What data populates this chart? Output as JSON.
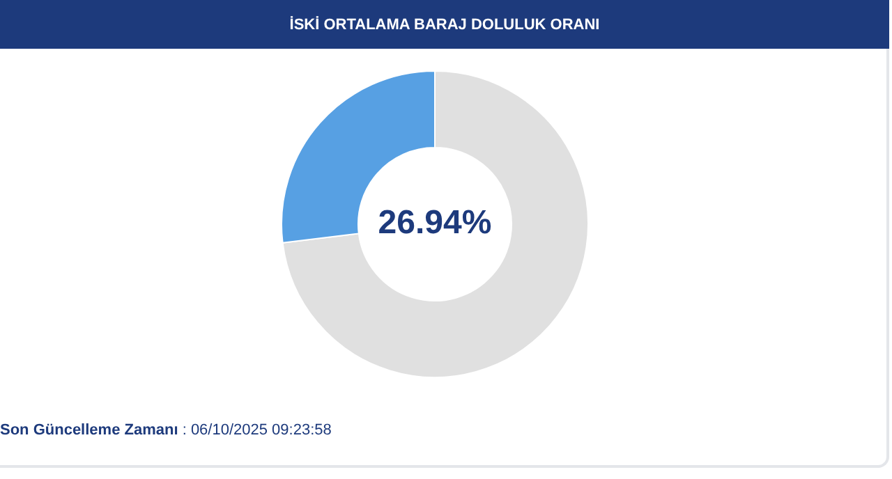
{
  "chart_data": {
    "type": "donut",
    "title": "İSKİ ORTALAMA BARAJ DOLULUK ORANI",
    "categories": [
      null,
      null
    ],
    "values": [
      73.06,
      26.94
    ],
    "colors": [
      "#e0e0e0",
      "#57a0e3"
    ],
    "annotations": [
      "26.94%",
      "Son Güncelleme Zamanı",
      ": 06/10/2025 09:23:58"
    ],
    "legend": false
  }
}
